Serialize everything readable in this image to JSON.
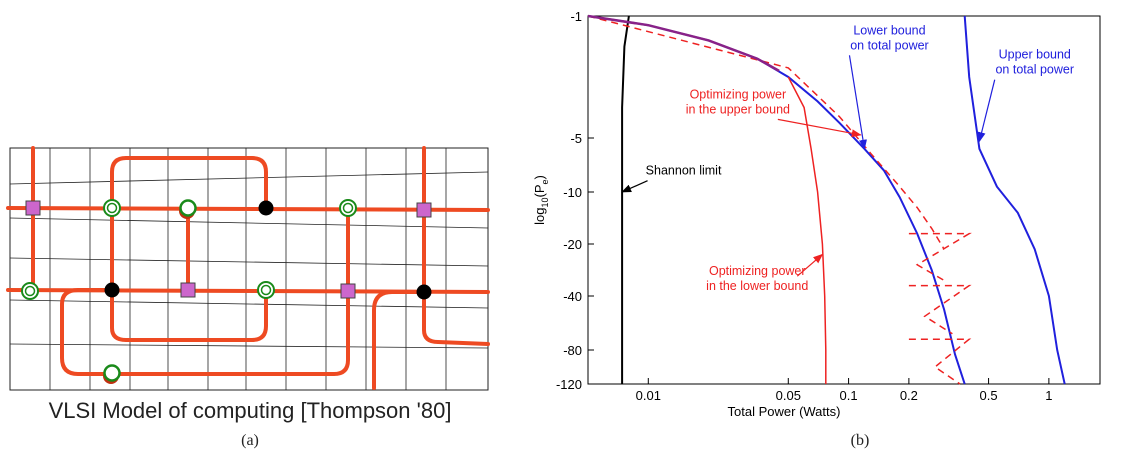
{
  "panel_a": {
    "caption": "VLSI Model of computing [Thompson '80]",
    "sublabel": "(a)",
    "colors": {
      "wire": "#ee4a22",
      "grid": "#222222",
      "square": "#cc66cc",
      "ring": "#1a8a1a",
      "black_node": "#000000"
    },
    "legend_icons": [
      "square-node",
      "ring-node",
      "black-node"
    ]
  },
  "panel_b": {
    "sublabel": "(b)",
    "chart_data": {
      "type": "line",
      "xlabel": "Total Power (Watts)",
      "ylabel": "log10(Pe)",
      "x_scale": "log",
      "xlim": [
        0.005,
        1.8
      ],
      "y_ticks": [
        {
          "value": -1,
          "label": "-1"
        },
        {
          "value": -5,
          "label": "-5"
        },
        {
          "value": -10,
          "label": "-10"
        },
        {
          "value": -20,
          "label": "-20"
        },
        {
          "value": -40,
          "label": "-40"
        },
        {
          "value": -80,
          "label": "-80"
        },
        {
          "value": -120,
          "label": "-120"
        }
      ],
      "x_ticks": [
        {
          "value": 0.01,
          "label": "0.01"
        },
        {
          "value": 0.05,
          "label": "0.05"
        },
        {
          "value": 0.1,
          "label": "0.1"
        },
        {
          "value": 0.2,
          "label": "0.2"
        },
        {
          "value": 0.5,
          "label": "0.5"
        },
        {
          "value": 1,
          "label": "1"
        }
      ],
      "colors": {
        "shannon": "#000000",
        "upper": "#2020dd",
        "lower": "#2020dd",
        "opt": "#ee2222",
        "opt_dashed": "#ee2222",
        "shared": "#882288"
      },
      "series": [
        {
          "key": "shannon",
          "points": [
            [
              0.008,
              -1
            ],
            [
              0.0076,
              -2
            ],
            [
              0.0074,
              -4
            ],
            [
              0.0074,
              -10
            ],
            [
              0.0074,
              -40
            ],
            [
              0.0074,
              -120
            ]
          ]
        },
        {
          "key": "lower_bound",
          "points": [
            [
              0.005,
              -1
            ],
            [
              0.01,
              -1.3
            ],
            [
              0.02,
              -1.8
            ],
            [
              0.035,
              -2.4
            ],
            [
              0.05,
              -3
            ],
            [
              0.07,
              -3.8
            ],
            [
              0.09,
              -4.5
            ],
            [
              0.12,
              -6
            ],
            [
              0.15,
              -8
            ],
            [
              0.18,
              -11
            ],
            [
              0.22,
              -18
            ],
            [
              0.26,
              -30
            ],
            [
              0.3,
              -50
            ],
            [
              0.34,
              -85
            ],
            [
              0.38,
              -120
            ]
          ]
        },
        {
          "key": "upper_bound",
          "points": [
            [
              0.38,
              -1
            ],
            [
              0.4,
              -3
            ],
            [
              0.45,
              -6
            ],
            [
              0.55,
              -9.5
            ],
            [
              0.7,
              -14
            ],
            [
              0.85,
              -22
            ],
            [
              1.0,
              -40
            ],
            [
              1.1,
              -80
            ],
            [
              1.2,
              -120
            ]
          ]
        },
        {
          "key": "opt_lower",
          "points": [
            [
              0.05,
              -3
            ],
            [
              0.06,
              -4
            ],
            [
              0.065,
              -6
            ],
            [
              0.07,
              -10
            ],
            [
              0.074,
              -20
            ],
            [
              0.076,
              -40
            ],
            [
              0.077,
              -80
            ],
            [
              0.077,
              -120
            ]
          ]
        },
        {
          "key": "opt_upper_dashed",
          "points": [
            [
              0.005,
              -1
            ],
            [
              0.05,
              -2.7
            ],
            [
              0.09,
              -4.3
            ],
            [
              0.13,
              -6.5
            ],
            [
              0.18,
              -9.5
            ],
            [
              0.22,
              -13
            ],
            [
              0.26,
              -17
            ],
            [
              0.3,
              -22
            ]
          ]
        },
        {
          "key": "shared",
          "points": [
            [
              0.005,
              -1
            ],
            [
              0.01,
              -1.3
            ],
            [
              0.02,
              -1.8
            ],
            [
              0.035,
              -2.4
            ],
            [
              0.045,
              -2.8
            ]
          ]
        }
      ],
      "sawtooth": [
        {
          "points": [
            [
              0.2,
              -18
            ],
            [
              0.4,
              -18
            ],
            [
              0.22,
              -28
            ],
            [
              0.3,
              -34
            ]
          ]
        },
        {
          "points": [
            [
              0.2,
              -36
            ],
            [
              0.4,
              -36
            ],
            [
              0.24,
              -55
            ],
            [
              0.33,
              -68
            ]
          ]
        },
        {
          "points": [
            [
              0.2,
              -72
            ],
            [
              0.4,
              -72
            ],
            [
              0.27,
              -100
            ],
            [
              0.36,
              -120
            ]
          ]
        }
      ],
      "annotations": [
        {
          "lines": [
            "Lower bound",
            "on total power"
          ],
          "color": "#2020dd",
          "text_at": [
            0.16,
            -1.6
          ],
          "arrow_to": [
            0.12,
            -6
          ]
        },
        {
          "lines": [
            "Upper bound",
            "on total power"
          ],
          "color": "#2020dd",
          "text_at": [
            0.85,
            -2.4
          ],
          "arrow_to": [
            0.45,
            -5.3
          ]
        },
        {
          "lines": [
            "Optimizing power",
            "in the upper bound"
          ],
          "color": "#ee2222",
          "text_at": [
            0.028,
            -3.7
          ],
          "arrow_to": [
            0.115,
            -4.9
          ]
        },
        {
          "lines": [
            "Shannon limit"
          ],
          "color": "#000000",
          "text_at": [
            0.015,
            -8.4
          ],
          "arrow_to": [
            0.0074,
            -10
          ]
        },
        {
          "lines": [
            "Optimizing power",
            "in the lower bound"
          ],
          "color": "#ee2222",
          "text_at": [
            0.035,
            -32
          ],
          "arrow_to": [
            0.074,
            -24
          ]
        }
      ]
    }
  }
}
